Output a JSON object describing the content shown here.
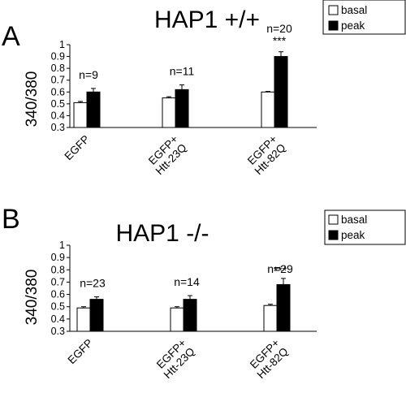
{
  "chart_data": [
    {
      "type": "bar",
      "panel": "A",
      "title": "HAP1 +/+",
      "ylabel": "340/380",
      "ylim": [
        0.3,
        1.0
      ],
      "yticks": [
        "0.3",
        "0.4",
        "0.5",
        "0.6",
        "0.7",
        "0.8",
        "0.9",
        "1"
      ],
      "categories": [
        [
          "EGFP"
        ],
        [
          "EGFP+",
          "Htt-23Q"
        ],
        [
          "EGFP+",
          "Htt-82Q"
        ]
      ],
      "series": [
        {
          "name": "basal",
          "color": "#ffffff",
          "values": [
            0.51,
            0.55,
            0.6
          ],
          "errors": [
            0.01,
            0.01,
            0.005
          ]
        },
        {
          "name": "peak",
          "color": "#000000",
          "values": [
            0.6,
            0.62,
            0.9
          ],
          "errors": [
            0.03,
            0.04,
            0.04
          ]
        }
      ],
      "annotations": [
        {
          "n": "n=9",
          "sig": ""
        },
        {
          "n": "n=11",
          "sig": ""
        },
        {
          "n": "n=20",
          "sig": "***"
        }
      ],
      "legend": {
        "position": "top-right",
        "labels": [
          "basal",
          "peak"
        ]
      }
    },
    {
      "type": "bar",
      "panel": "B",
      "title": "HAP1 -/-",
      "ylabel": "340/380",
      "ylim": [
        0.3,
        1.0
      ],
      "yticks": [
        "0.3",
        "0.4",
        "0.5",
        "0.6",
        "0.7",
        "0.8",
        "0.9",
        "1"
      ],
      "categories": [
        [
          "EGFP"
        ],
        [
          "EGFP+",
          "Htt-23Q"
        ],
        [
          "EGFP+",
          "Htt-82Q"
        ]
      ],
      "series": [
        {
          "name": "basal",
          "color": "#ffffff",
          "values": [
            0.49,
            0.49,
            0.51
          ],
          "errors": [
            0.01,
            0.01,
            0.01
          ]
        },
        {
          "name": "peak",
          "color": "#000000",
          "values": [
            0.56,
            0.56,
            0.68
          ],
          "errors": [
            0.02,
            0.03,
            0.05
          ]
        }
      ],
      "annotations": [
        {
          "n": "n=23",
          "sig": ""
        },
        {
          "n": "n=14",
          "sig": ""
        },
        {
          "n": "n=29",
          "sig": "***"
        }
      ],
      "legend": {
        "position": "top-right",
        "labels": [
          "basal",
          "peak"
        ]
      }
    }
  ]
}
